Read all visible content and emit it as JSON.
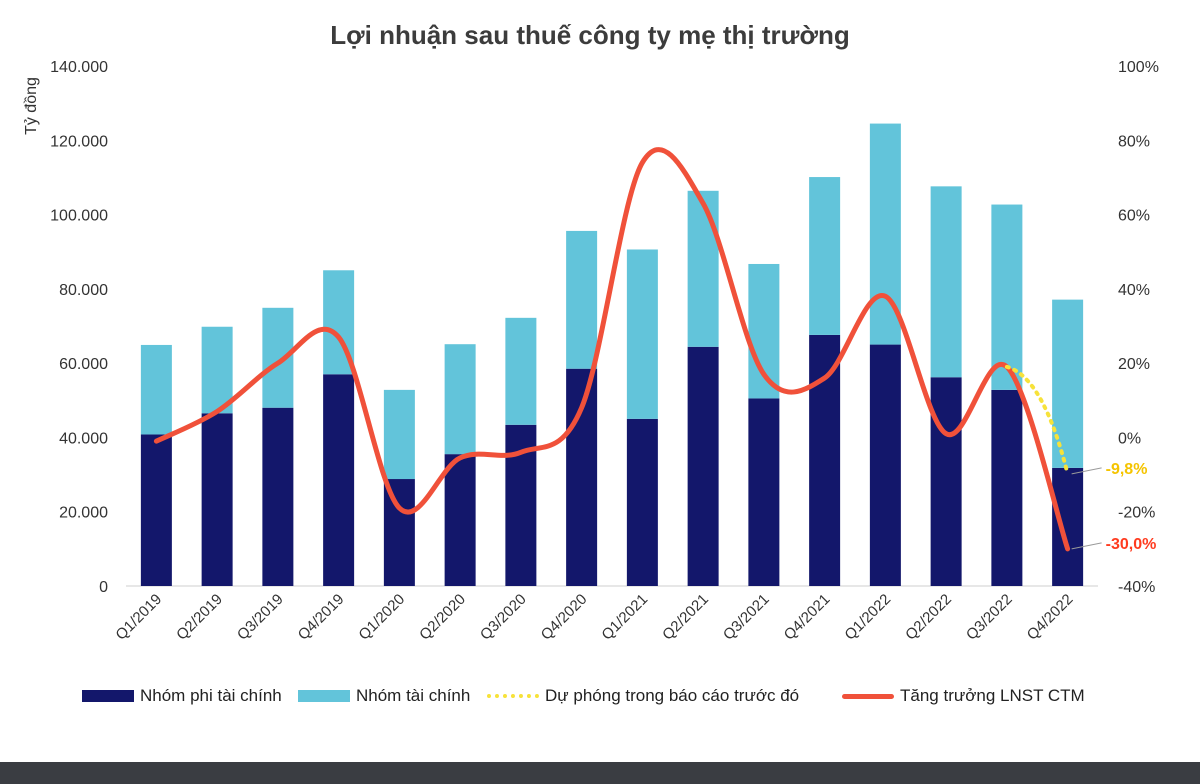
{
  "chart_data": {
    "type": "bar",
    "title": "Lợi nhuận sau thuế công ty mẹ thị trường",
    "ylabel": "Tỷ đồng",
    "ylim": [
      0,
      140000
    ],
    "y2lim": [
      -40,
      100
    ],
    "y_ticks": [
      "0",
      "20.000",
      "40.000",
      "60.000",
      "80.000",
      "100.000",
      "120.000",
      "140.000"
    ],
    "y2_ticks": [
      "-40%",
      "-20%",
      "0%",
      "20%",
      "40%",
      "60%",
      "80%",
      "100%"
    ],
    "categories": [
      "Q1/2019",
      "Q2/2019",
      "Q3/2019",
      "Q4/2019",
      "Q1/2020",
      "Q2/2020",
      "Q3/2020",
      "Q4/2020",
      "Q1/2021",
      "Q2/2021",
      "Q3/2021",
      "Q4/2021",
      "Q1/2022",
      "Q2/2022",
      "Q3/2022",
      "Q4/2022"
    ],
    "series": [
      {
        "name": "Nhóm phi tài chính",
        "kind": "stacked-bar",
        "color": "#13176b",
        "values": [
          40800,
          46500,
          48000,
          57000,
          28800,
          35500,
          43400,
          58500,
          45000,
          64400,
          50500,
          67600,
          65000,
          56200,
          52800,
          31800
        ]
      },
      {
        "name": "Nhóm tài chính",
        "kind": "stacked-bar",
        "color": "#62c4da",
        "values": [
          24100,
          23300,
          26900,
          28000,
          24000,
          29600,
          28800,
          37100,
          45600,
          42000,
          36200,
          42500,
          59500,
          51400,
          49900,
          45300
        ]
      },
      {
        "name": "Dự phóng trong báo cáo trước đó",
        "kind": "dotted-line",
        "axis": "right",
        "color": "#f7e23a",
        "values": [
          null,
          null,
          null,
          null,
          null,
          null,
          null,
          null,
          null,
          null,
          null,
          null,
          null,
          null,
          19,
          -9.8
        ]
      },
      {
        "name": "Tăng trưởng LNST CTM",
        "kind": "line",
        "axis": "right",
        "color": "#f0513a",
        "values": [
          -1,
          7,
          20,
          27,
          -19,
          -5.5,
          -4,
          8,
          74,
          63,
          17,
          16,
          38,
          1,
          19,
          -30
        ]
      }
    ],
    "annotations": [
      {
        "text": "-9,8%",
        "value": -9.8,
        "color": "#f5c400"
      },
      {
        "text": "-30,0%",
        "value": -30,
        "color": "#ff3b1f"
      }
    ]
  }
}
